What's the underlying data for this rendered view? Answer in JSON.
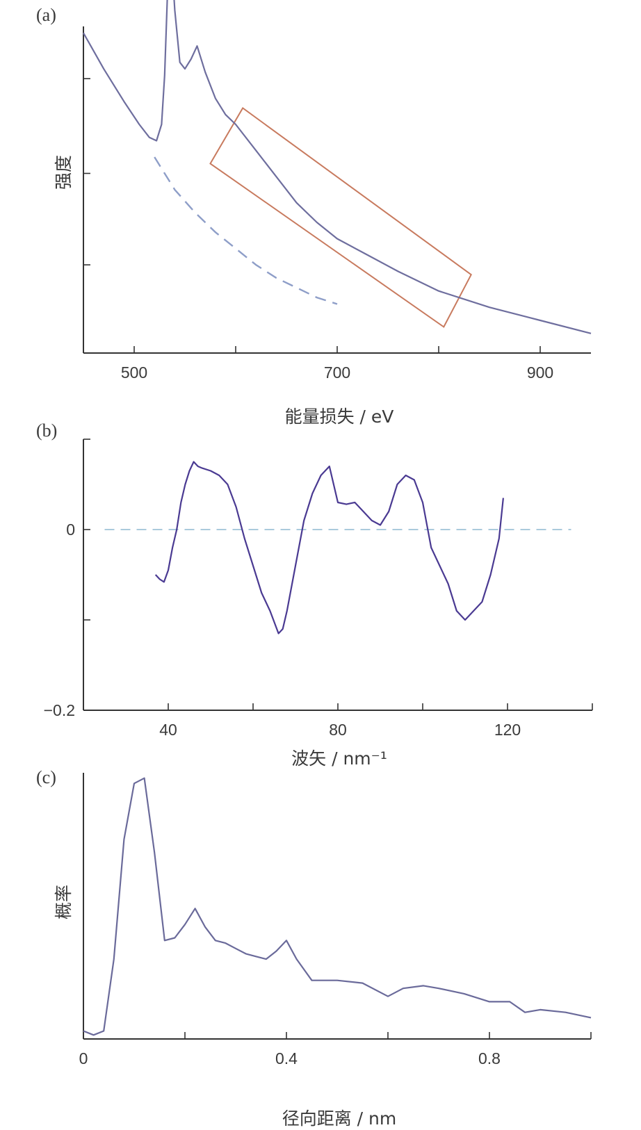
{
  "chart_data": [
    {
      "panel": "(a)",
      "type": "line",
      "xlabel": "能量损失 / eV",
      "ylabel": "强度",
      "xlim": [
        450,
        950
      ],
      "ylim": [
        0,
        1
      ],
      "xticks": [
        500,
        700,
        900
      ],
      "xticks_minor": [
        600,
        800
      ],
      "yticks": [
        0.27,
        0.55,
        0.84
      ],
      "x": [
        450,
        470,
        490,
        505,
        515,
        522,
        527,
        530,
        533,
        536,
        540,
        545,
        550,
        556,
        562,
        570,
        580,
        590,
        600,
        620,
        640,
        660,
        680,
        700,
        730,
        760,
        800,
        850,
        900,
        950
      ],
      "y": [
        0.98,
        0.87,
        0.77,
        0.7,
        0.66,
        0.65,
        0.7,
        0.85,
        1.12,
        1.25,
        1.05,
        0.89,
        0.87,
        0.9,
        0.94,
        0.86,
        0.78,
        0.73,
        0.7,
        0.62,
        0.54,
        0.46,
        0.4,
        0.35,
        0.3,
        0.25,
        0.19,
        0.14,
        0.1,
        0.06
      ],
      "series_color": "#6e6e9e",
      "background": {
        "x": [
          520,
          540,
          560,
          580,
          600,
          620,
          640,
          660,
          680,
          700
        ],
        "y": [
          0.6,
          0.5,
          0.43,
          0.37,
          0.32,
          0.27,
          0.23,
          0.2,
          0.17,
          0.15
        ],
        "style": "dashed",
        "color": "#8e9ec8"
      },
      "highlight_box": {
        "corners": [
          [
            575,
            0.58
          ],
          [
            607,
            0.75
          ],
          [
            832,
            0.24
          ],
          [
            805,
            0.08
          ]
        ],
        "color": "#c87a5e"
      }
    },
    {
      "panel": "(b)",
      "type": "line",
      "xlabel": "波矢 / nm⁻¹",
      "ylabel": "",
      "xlim": [
        20,
        140
      ],
      "ylim": [
        -0.2,
        0.1
      ],
      "xticks": [
        40,
        80,
        120
      ],
      "xticks_minor": [
        60,
        100,
        140
      ],
      "yticks": [
        -0.2,
        -0.1,
        0,
        0.1
      ],
      "ytick_labels": {
        "-0.2": "−0.2",
        "0": "0"
      },
      "x": [
        37,
        38,
        39,
        40,
        41,
        42,
        43,
        44,
        45,
        46,
        47,
        48,
        50,
        52,
        54,
        56,
        58,
        60,
        62,
        64,
        66,
        67,
        68,
        70,
        72,
        74,
        76,
        78,
        79,
        80,
        82,
        84,
        86,
        88,
        90,
        92,
        94,
        96,
        98,
        100,
        102,
        104,
        106,
        108,
        110,
        112,
        114,
        116,
        118,
        119
      ],
      "y": [
        -0.05,
        -0.055,
        -0.058,
        -0.045,
        -0.02,
        0.0,
        0.03,
        0.05,
        0.065,
        0.075,
        0.07,
        0.068,
        0.065,
        0.06,
        0.05,
        0.025,
        -0.01,
        -0.04,
        -0.07,
        -0.09,
        -0.115,
        -0.11,
        -0.09,
        -0.04,
        0.01,
        0.04,
        0.06,
        0.07,
        0.05,
        0.03,
        0.028,
        0.03,
        0.02,
        0.01,
        0.005,
        0.02,
        0.05,
        0.06,
        0.055,
        0.03,
        -0.02,
        -0.04,
        -0.06,
        -0.09,
        -0.1,
        -0.09,
        -0.08,
        -0.05,
        -0.01,
        0.035
      ],
      "series_color": "#4a3a92",
      "zero_line": {
        "y": 0,
        "x_from": 25,
        "x_to": 135,
        "style": "dashed",
        "color": "#9fc2d8"
      }
    },
    {
      "panel": "(c)",
      "type": "line",
      "xlabel": "径向距离 / nm",
      "ylabel": "概率",
      "xlim": [
        0,
        1
      ],
      "ylim": [
        0,
        1
      ],
      "xticks": [
        0,
        0.4,
        0.8
      ],
      "xticks_minor": [
        0.2,
        0.6,
        1.0
      ],
      "x": [
        0,
        0.02,
        0.04,
        0.06,
        0.08,
        0.1,
        0.12,
        0.14,
        0.16,
        0.18,
        0.2,
        0.22,
        0.24,
        0.26,
        0.28,
        0.3,
        0.32,
        0.34,
        0.36,
        0.38,
        0.4,
        0.42,
        0.45,
        0.5,
        0.55,
        0.6,
        0.63,
        0.67,
        0.7,
        0.75,
        0.8,
        0.84,
        0.87,
        0.9,
        0.95,
        1.0
      ],
      "y": [
        0.03,
        0.015,
        0.03,
        0.3,
        0.75,
        0.96,
        0.98,
        0.7,
        0.37,
        0.38,
        0.43,
        0.49,
        0.42,
        0.37,
        0.36,
        0.34,
        0.32,
        0.31,
        0.3,
        0.33,
        0.37,
        0.3,
        0.22,
        0.22,
        0.21,
        0.16,
        0.19,
        0.2,
        0.19,
        0.17,
        0.14,
        0.14,
        0.1,
        0.11,
        0.1,
        0.08
      ],
      "series_color": "#6a6a9a"
    }
  ]
}
